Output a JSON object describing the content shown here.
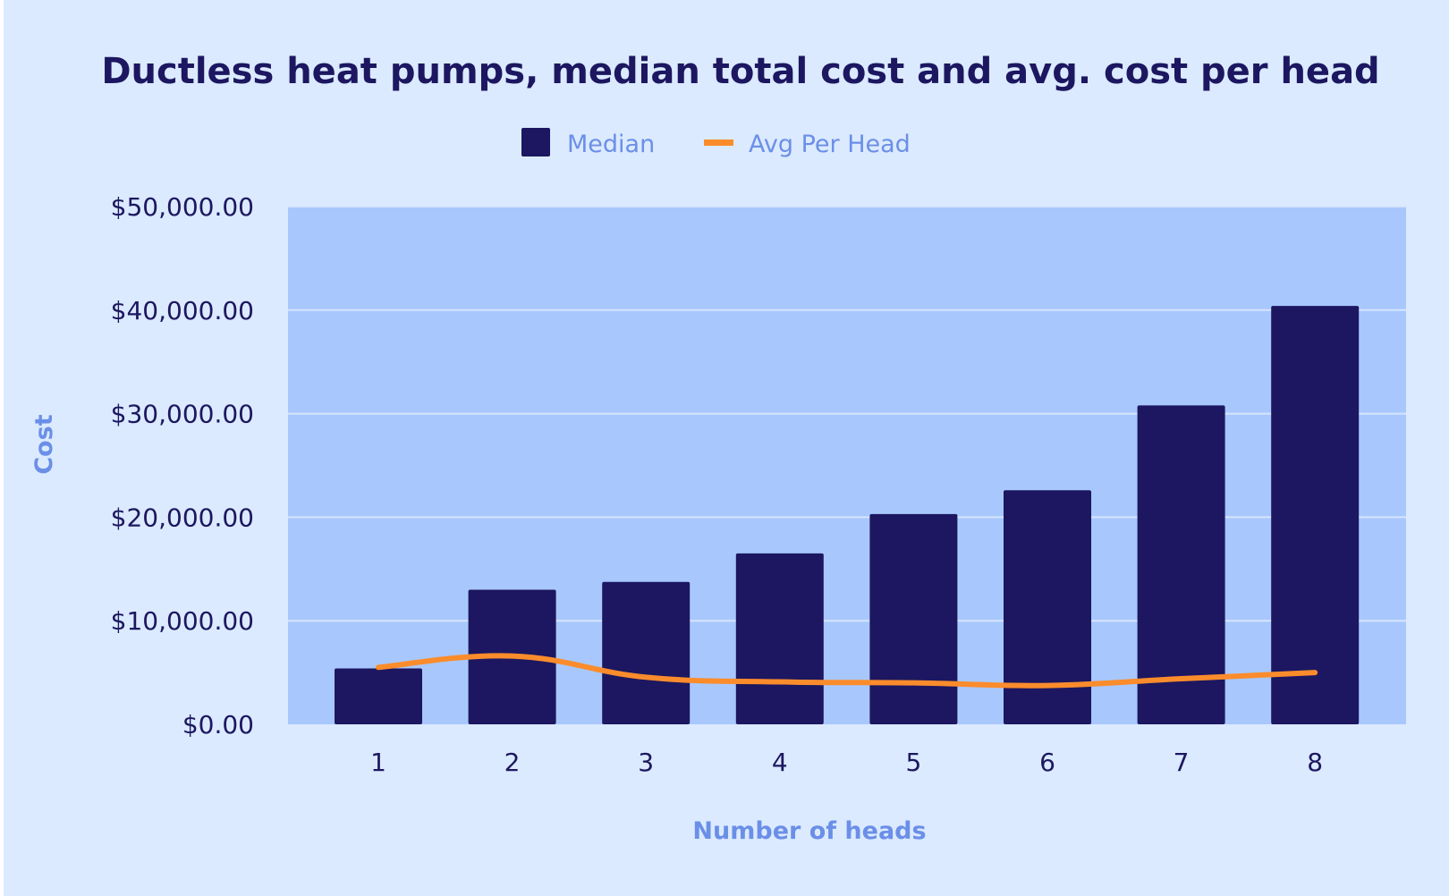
{
  "chart_data": {
    "type": "bar",
    "title": "Ductless heat pumps, median total cost and avg. cost per head",
    "xlabel": "Number of heads",
    "ylabel": "Cost",
    "categories": [
      "1",
      "2",
      "3",
      "4",
      "5",
      "6",
      "7",
      "8"
    ],
    "ylim": [
      0,
      50000
    ],
    "yticks": [
      "$0.00",
      "$10,000.00",
      "$20,000.00",
      "$30,000.00",
      "$40,000.00",
      "$50,000.00"
    ],
    "grid": true,
    "legend_position": "top",
    "series": [
      {
        "name": "Median",
        "type": "bar",
        "color": "#1c1760",
        "values": [
          5400,
          13000,
          13750,
          16500,
          20300,
          22600,
          30800,
          40400
        ]
      },
      {
        "name": "Avg Per Head",
        "type": "line",
        "smooth": true,
        "color": "#fb8c2c",
        "values": [
          5500,
          6600,
          4550,
          4100,
          4000,
          3750,
          4400,
          5000
        ]
      }
    ],
    "colors": {
      "background": "#dbeafe",
      "plot_background": "#a8c8fd",
      "title": "#1c1760",
      "axis_label": "#6b8fe8",
      "tick_label": "#1c1760"
    }
  }
}
